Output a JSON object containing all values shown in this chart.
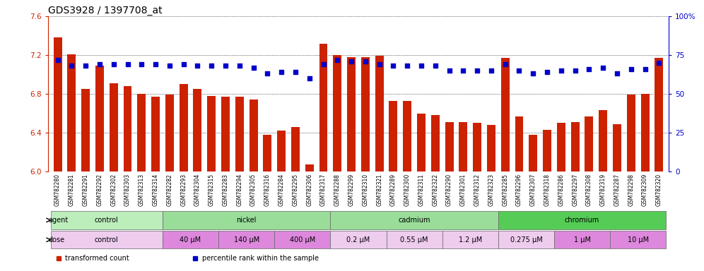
{
  "title": "GDS3928 / 1397708_at",
  "samples": [
    "GSM782280",
    "GSM782281",
    "GSM782291",
    "GSM782292",
    "GSM782302",
    "GSM782303",
    "GSM782313",
    "GSM782314",
    "GSM782282",
    "GSM782293",
    "GSM782304",
    "GSM782315",
    "GSM782283",
    "GSM782294",
    "GSM782305",
    "GSM782316",
    "GSM782284",
    "GSM782295",
    "GSM782306",
    "GSM782317",
    "GSM782288",
    "GSM782299",
    "GSM782310",
    "GSM782321",
    "GSM782289",
    "GSM782300",
    "GSM782311",
    "GSM782322",
    "GSM782290",
    "GSM782301",
    "GSM782312",
    "GSM782323",
    "GSM782285",
    "GSM782296",
    "GSM782307",
    "GSM782318",
    "GSM782286",
    "GSM782297",
    "GSM782308",
    "GSM782319",
    "GSM782287",
    "GSM782298",
    "GSM782309",
    "GSM782320"
  ],
  "bar_values": [
    7.38,
    7.21,
    6.85,
    7.09,
    6.91,
    6.88,
    6.8,
    6.77,
    6.79,
    6.9,
    6.85,
    6.78,
    6.77,
    6.77,
    6.74,
    6.38,
    6.42,
    6.46,
    6.07,
    7.32,
    7.2,
    7.18,
    7.18,
    7.19,
    6.73,
    6.73,
    6.6,
    6.58,
    6.51,
    6.51,
    6.5,
    6.48,
    7.17,
    6.57,
    6.38,
    6.43,
    6.5,
    6.51,
    6.57,
    6.63,
    6.49,
    6.79,
    6.8,
    7.17
  ],
  "percentile_values": [
    72,
    68,
    68,
    69,
    69,
    69,
    69,
    69,
    68,
    69,
    68,
    68,
    68,
    68,
    67,
    63,
    64,
    64,
    60,
    69,
    72,
    71,
    71,
    69,
    68,
    68,
    68,
    68,
    65,
    65,
    65,
    65,
    69,
    65,
    63,
    64,
    65,
    65,
    66,
    67,
    63,
    66,
    66,
    70
  ],
  "ylim_left": [
    6.0,
    7.6
  ],
  "ylim_right": [
    0,
    100
  ],
  "yticks_left": [
    6.0,
    6.4,
    6.8,
    7.2,
    7.6
  ],
  "yticks_right": [
    0,
    25,
    50,
    75,
    100
  ],
  "bar_color": "#cc2200",
  "dot_color": "#0000cc",
  "agent_groups": [
    {
      "label": "control",
      "start": 0,
      "end": 7,
      "color": "#bbeebb"
    },
    {
      "label": "nickel",
      "start": 8,
      "end": 19,
      "color": "#99dd99"
    },
    {
      "label": "cadmium",
      "start": 20,
      "end": 31,
      "color": "#99dd99"
    },
    {
      "label": "chromium",
      "start": 32,
      "end": 43,
      "color": "#55cc55"
    }
  ],
  "dose_groups": [
    {
      "label": "control",
      "start": 0,
      "end": 7,
      "color": "#eeccee"
    },
    {
      "label": "40 μM",
      "start": 8,
      "end": 11,
      "color": "#dd88dd"
    },
    {
      "label": "140 μM",
      "start": 12,
      "end": 15,
      "color": "#dd88dd"
    },
    {
      "label": "400 μM",
      "start": 16,
      "end": 19,
      "color": "#dd88dd"
    },
    {
      "label": "0.2 μM",
      "start": 20,
      "end": 23,
      "color": "#eeccee"
    },
    {
      "label": "0.55 μM",
      "start": 24,
      "end": 27,
      "color": "#eeccee"
    },
    {
      "label": "1.2 μM",
      "start": 28,
      "end": 31,
      "color": "#eeccee"
    },
    {
      "label": "0.275 μM",
      "start": 32,
      "end": 35,
      "color": "#eeccee"
    },
    {
      "label": "1 μM",
      "start": 36,
      "end": 39,
      "color": "#dd88dd"
    },
    {
      "label": "10 μM",
      "start": 40,
      "end": 43,
      "color": "#dd88dd"
    }
  ],
  "legend_items": [
    {
      "label": "transformed count",
      "color": "#cc2200"
    },
    {
      "label": "percentile rank within the sample",
      "color": "#0000cc"
    }
  ],
  "background_color": "#ffffff",
  "tick_fontsize": 5.5,
  "label_fontsize": 7,
  "title_fontsize": 10,
  "xtick_bg": "#cccccc"
}
